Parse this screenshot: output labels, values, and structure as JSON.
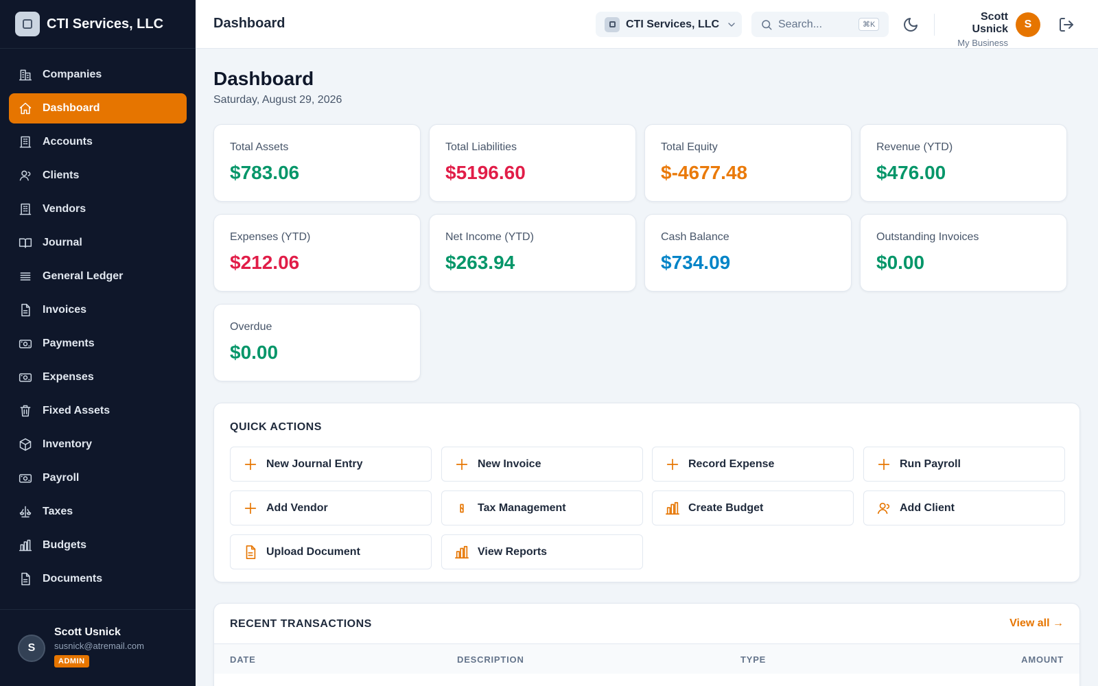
{
  "brand": {
    "name": "CTI Services, LLC"
  },
  "sidebar": {
    "items": [
      {
        "label": "Companies",
        "icon": "buildings-icon"
      },
      {
        "label": "Dashboard",
        "icon": "home-icon",
        "active": true
      },
      {
        "label": "Accounts",
        "icon": "building-icon"
      },
      {
        "label": "Clients",
        "icon": "users-icon"
      },
      {
        "label": "Vendors",
        "icon": "building-icon"
      },
      {
        "label": "Journal",
        "icon": "book-icon"
      },
      {
        "label": "General Ledger",
        "icon": "list-icon"
      },
      {
        "label": "Invoices",
        "icon": "document-icon"
      },
      {
        "label": "Payments",
        "icon": "cash-icon"
      },
      {
        "label": "Expenses",
        "icon": "cash-icon"
      },
      {
        "label": "Fixed Assets",
        "icon": "trash-icon"
      },
      {
        "label": "Inventory",
        "icon": "cube-icon"
      },
      {
        "label": "Payroll",
        "icon": "cash-icon"
      },
      {
        "label": "Taxes",
        "icon": "scale-icon"
      },
      {
        "label": "Budgets",
        "icon": "chart-icon"
      },
      {
        "label": "Documents",
        "icon": "document-icon"
      }
    ],
    "user": {
      "initial": "S",
      "name": "Scott Usnick",
      "email": "susnick@atremail.com",
      "role": "ADMIN"
    }
  },
  "header": {
    "title": "Dashboard",
    "company": "CTI Services, LLC",
    "search_placeholder": "Search...",
    "shortcut": "⌘K",
    "user_name": "Scott Usnick",
    "user_sub": "My Business",
    "avatar_initial": "S"
  },
  "page": {
    "title": "Dashboard",
    "date": "Saturday, August 29, 2026"
  },
  "metrics": [
    {
      "label": "Total Assets",
      "value": "$783.06",
      "color": "#059669"
    },
    {
      "label": "Total Liabilities",
      "value": "$5196.60",
      "color": "#e11d48"
    },
    {
      "label": "Total Equity",
      "value": "$-4677.48",
      "color": "#ea7a0a"
    },
    {
      "label": "Revenue (YTD)",
      "value": "$476.00",
      "color": "#059669"
    },
    {
      "label": "Expenses (YTD)",
      "value": "$212.06",
      "color": "#e11d48"
    },
    {
      "label": "Net Income (YTD)",
      "value": "$263.94",
      "color": "#059669"
    },
    {
      "label": "Cash Balance",
      "value": "$734.09",
      "color": "#0284c7"
    },
    {
      "label": "Outstanding Invoices",
      "value": "$0.00",
      "color": "#059669"
    },
    {
      "label": "Overdue",
      "value": "$0.00",
      "color": "#059669"
    }
  ],
  "quick_actions": {
    "title": "QUICK ACTIONS",
    "items": [
      {
        "label": "New Journal Entry",
        "icon": "plus-icon"
      },
      {
        "label": "New Invoice",
        "icon": "plus-icon"
      },
      {
        "label": "Record Expense",
        "icon": "plus-icon"
      },
      {
        "label": "Run Payroll",
        "icon": "plus-icon"
      },
      {
        "label": "Add Vendor",
        "icon": "plus-icon"
      },
      {
        "label": "Tax Management",
        "icon": "tax-icon"
      },
      {
        "label": "Create Budget",
        "icon": "chart-icon"
      },
      {
        "label": "Add Client",
        "icon": "users-icon"
      },
      {
        "label": "Upload Document",
        "icon": "document-icon"
      },
      {
        "label": "View Reports",
        "icon": "chart-icon"
      }
    ]
  },
  "recent_transactions": {
    "title": "RECENT TRANSACTIONS",
    "view_all": "View all →",
    "columns": [
      "DATE",
      "DESCRIPTION",
      "TYPE",
      "AMOUNT"
    ]
  },
  "colors": {
    "accent": "#e67500",
    "sidebar_bg": "#0f172a"
  }
}
